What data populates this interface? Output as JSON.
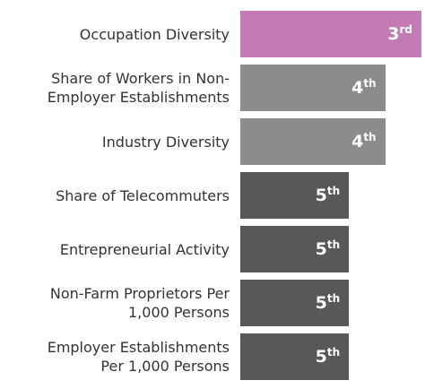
{
  "chart_data": {
    "type": "bar",
    "orientation": "horizontal",
    "categories": [
      "Occupation Diversity",
      "Share of Workers in Non-Employer Establishments",
      "Industry Diversity",
      "Share of Telecommuters",
      "Entrepreneurial Activity",
      "Non-Farm Proprietors Per 1,000 Persons",
      "Employer Establishments Per 1,000 Persons"
    ],
    "values": [
      3,
      4,
      4,
      5,
      5,
      5,
      5
    ],
    "value_labels": [
      "3rd",
      "4th",
      "4th",
      "5th",
      "5th",
      "5th",
      "5th"
    ],
    "colors": [
      "#c27bb5",
      "#8c8c8e",
      "#8c8c8e",
      "#58585a",
      "#58585a",
      "#58585a",
      "#58585a"
    ],
    "xlim": [
      8,
      3
    ]
  }
}
